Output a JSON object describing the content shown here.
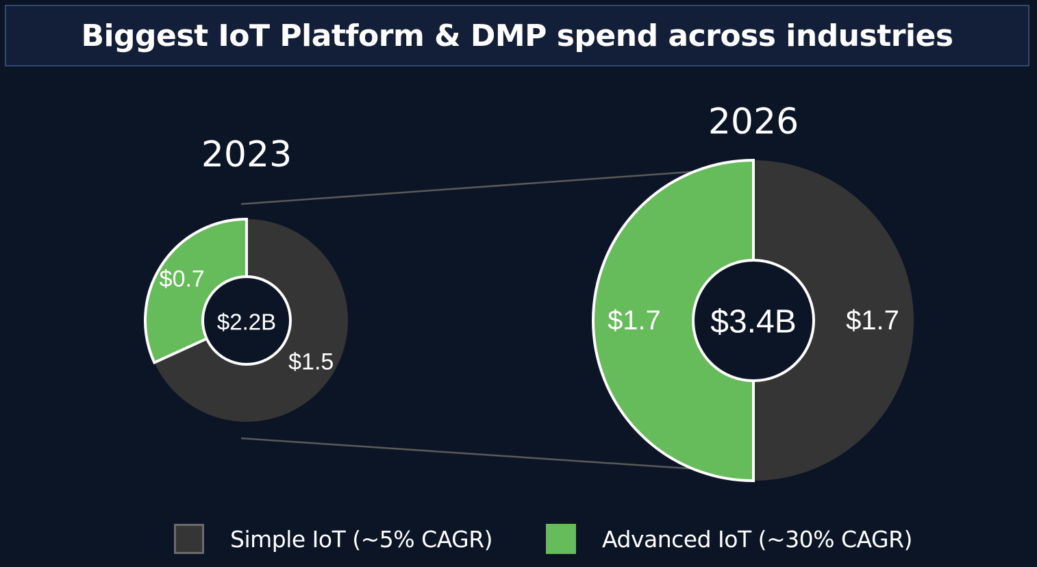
{
  "title": "Biggest IoT Platform & DMP spend across industries",
  "chart_data": {
    "type": "pie",
    "subtype": "donut",
    "title": "Biggest IoT Platform & DMP spend across industries",
    "unit": "$B",
    "series_names": [
      "Simple IoT (~5% CAGR)",
      "Advanced IoT (~30% CAGR)"
    ],
    "charts": [
      {
        "year": "2023",
        "total_label": "$2.2B",
        "total": 2.2,
        "slices": [
          {
            "name": "Simple IoT (~5% CAGR)",
            "value": 1.5,
            "label": "$1.5",
            "color": "#353535"
          },
          {
            "name": "Advanced IoT (~30% CAGR)",
            "value": 0.7,
            "label": "$0.7",
            "color": "#66bb5a"
          }
        ]
      },
      {
        "year": "2026",
        "total_label": "$3.4B",
        "total": 3.4,
        "slices": [
          {
            "name": "Simple IoT (~5% CAGR)",
            "value": 1.7,
            "label": "$1.7",
            "color": "#353535"
          },
          {
            "name": "Advanced IoT (~30% CAGR)",
            "value": 1.7,
            "label": "$1.7",
            "color": "#66bb5a"
          }
        ]
      }
    ],
    "legend": {
      "position": "bottom",
      "entries": [
        {
          "label": "Simple IoT (~5% CAGR)",
          "color": "#353535"
        },
        {
          "label": "Advanced IoT (~30% CAGR)",
          "color": "#66bb5a"
        }
      ]
    }
  },
  "colors": {
    "background": "#0c1526",
    "title_bar": "#131e38",
    "title_border": "#34496d",
    "simple": "#353535",
    "advanced": "#66bb5a",
    "connector": "#5a5a5a",
    "outline": "#ffffff"
  }
}
